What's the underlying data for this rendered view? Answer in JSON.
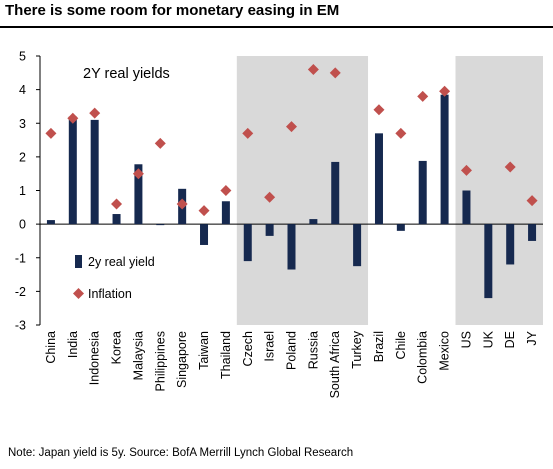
{
  "title": "There is some room for monetary easing in EM",
  "note": "Note: Japan yield is 5y. Source: BofA Merrill Lynch Global Research",
  "colors": {
    "bar": "#16294f",
    "marker": "#c0504d",
    "shade": "#d9d9d9"
  },
  "chart_data": {
    "type": "bar",
    "title": "",
    "annotation": "2Y real yields",
    "xlabel": "",
    "ylabel": "",
    "ylim": [
      -3,
      5
    ],
    "yticks": [
      "5",
      "4",
      "3",
      "2",
      "1",
      "0",
      "-1",
      "-2",
      "-3"
    ],
    "grid": false,
    "legend_position": "lower-left",
    "categories": [
      "China",
      "India",
      "Indonesia",
      "Korea",
      "Malaysia",
      "Philippines",
      "Singapore",
      "Taiwan",
      "Thailand",
      "Czech",
      "Israel",
      "Poland",
      "Russia",
      "South Africa",
      "Turkey",
      "Brazil",
      "Chile",
      "Colombia",
      "Mexico",
      "US",
      "UK",
      "DE",
      "JY"
    ],
    "shaded_ranges": [
      [
        "Czech",
        "Turkey"
      ],
      [
        "US",
        "JY"
      ]
    ],
    "series": [
      {
        "name": "2y real yield",
        "kind": "bar",
        "values": [
          0.12,
          3.2,
          3.1,
          0.3,
          1.78,
          -0.02,
          1.05,
          -0.62,
          0.68,
          -1.1,
          -0.35,
          -1.35,
          0.15,
          1.85,
          -1.25,
          2.7,
          -0.2,
          1.88,
          3.85,
          1.0,
          -2.2,
          -1.2,
          -0.5
        ]
      },
      {
        "name": "Inflation",
        "kind": "marker",
        "values": [
          2.7,
          3.15,
          3.3,
          0.6,
          1.5,
          2.4,
          0.6,
          0.4,
          1.0,
          2.7,
          0.8,
          2.9,
          4.6,
          4.5,
          null,
          3.4,
          2.7,
          3.8,
          3.95,
          1.6,
          null,
          1.7,
          0.7
        ]
      }
    ]
  }
}
